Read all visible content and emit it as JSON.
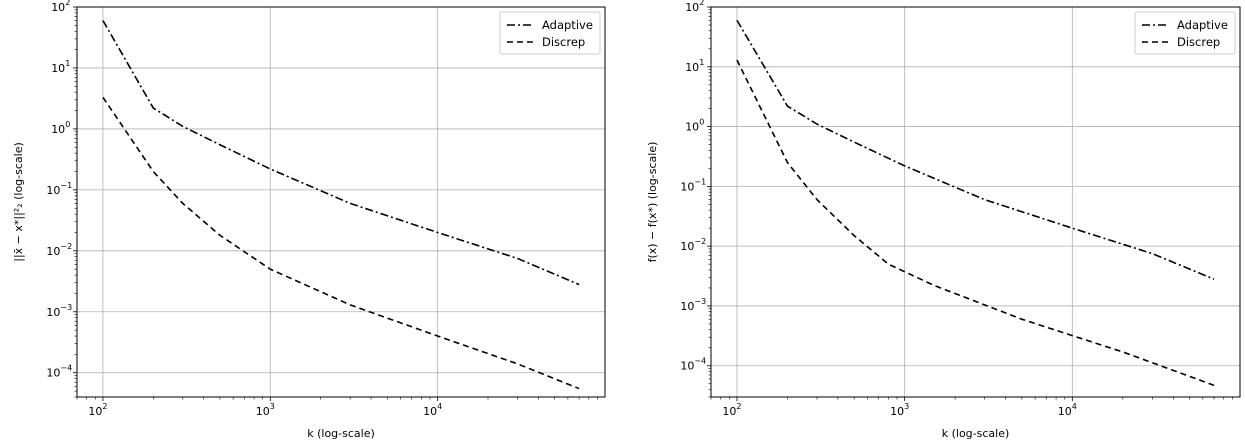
{
  "chart_data": [
    {
      "type": "line",
      "title": "",
      "xlabel": "k (log-scale)",
      "ylabel": "||x̄ − x*||²₂ (log-scale)",
      "xscale": "log",
      "yscale": "log",
      "xlim": [
        70,
        100000
      ],
      "ylim": [
        4e-05,
        100
      ],
      "grid": true,
      "legend": "top-right",
      "x_ticks": [
        {
          "base": "10",
          "exp": "2",
          "value": 100
        },
        {
          "base": "10",
          "exp": "3",
          "value": 1000
        },
        {
          "base": "10",
          "exp": "4",
          "value": 10000
        }
      ],
      "y_ticks": [
        {
          "base": "10",
          "exp": "−4",
          "value": 0.0001
        },
        {
          "base": "10",
          "exp": "−3",
          "value": 0.001
        },
        {
          "base": "10",
          "exp": "−2",
          "value": 0.01
        },
        {
          "base": "10",
          "exp": "−1",
          "value": 0.1
        },
        {
          "base": "10",
          "exp": "0",
          "value": 1
        },
        {
          "base": "10",
          "exp": "1",
          "value": 10
        },
        {
          "base": "10",
          "exp": "2",
          "value": 100
        }
      ],
      "series": [
        {
          "name": "Adaptive",
          "style": "dashdot",
          "x": [
            100,
            200,
            300,
            500,
            1000,
            3000,
            10000,
            30000,
            70000
          ],
          "y": [
            60,
            2.2,
            1.1,
            0.55,
            0.22,
            0.06,
            0.02,
            0.0075,
            0.0028
          ]
        },
        {
          "name": "Discrep",
          "style": "dashed",
          "x": [
            100,
            200,
            300,
            500,
            1000,
            3000,
            10000,
            30000,
            70000
          ],
          "y": [
            3.3,
            0.2,
            0.06,
            0.018,
            0.005,
            0.0013,
            0.0004,
            0.00014,
            5.5e-05
          ]
        }
      ]
    },
    {
      "type": "line",
      "title": "",
      "xlabel": "k (log-scale)",
      "ylabel": "f(x) − f(x*) (log-scale)",
      "xscale": "log",
      "yscale": "log",
      "xlim": [
        70,
        100000
      ],
      "ylim": [
        3e-05,
        100
      ],
      "grid": true,
      "legend": "top-right",
      "x_ticks": [
        {
          "base": "10",
          "exp": "2",
          "value": 100
        },
        {
          "base": "10",
          "exp": "3",
          "value": 1000
        },
        {
          "base": "10",
          "exp": "4",
          "value": 10000
        }
      ],
      "y_ticks": [
        {
          "base": "10",
          "exp": "−4",
          "value": 0.0001
        },
        {
          "base": "10",
          "exp": "−3",
          "value": 0.001
        },
        {
          "base": "10",
          "exp": "−2",
          "value": 0.01
        },
        {
          "base": "10",
          "exp": "−1",
          "value": 0.1
        },
        {
          "base": "10",
          "exp": "0",
          "value": 1
        },
        {
          "base": "10",
          "exp": "1",
          "value": 10
        },
        {
          "base": "10",
          "exp": "2",
          "value": 100
        }
      ],
      "series": [
        {
          "name": "Adaptive",
          "style": "dashdot",
          "x": [
            100,
            200,
            300,
            500,
            1000,
            3000,
            10000,
            30000,
            70000
          ],
          "y": [
            60,
            2.2,
            1.1,
            0.55,
            0.22,
            0.06,
            0.02,
            0.0075,
            0.0028
          ]
        },
        {
          "name": "Discrep",
          "style": "dashed",
          "x": [
            100,
            200,
            300,
            500,
            800,
            1500,
            5000,
            20000,
            70000
          ],
          "y": [
            13,
            0.25,
            0.06,
            0.015,
            0.005,
            0.0022,
            0.0006,
            0.00017,
            4.7e-05
          ]
        }
      ]
    }
  ]
}
